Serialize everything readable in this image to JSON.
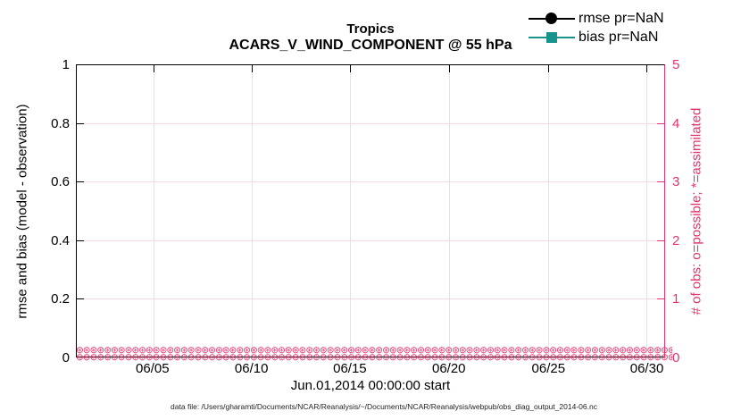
{
  "title": {
    "line1": "Tropics",
    "line2": "ACARS_V_WIND_COMPONENT @ 55 hPa"
  },
  "axes": {
    "x": {
      "label": "Jun.01,2014 00:00:00 start",
      "ticks": [
        {
          "label": "06/05",
          "pct": 13.0
        },
        {
          "label": "06/10",
          "pct": 29.8
        },
        {
          "label": "06/15",
          "pct": 46.5
        },
        {
          "label": "06/20",
          "pct": 63.3
        },
        {
          "label": "06/25",
          "pct": 80.2
        },
        {
          "label": "06/30",
          "pct": 96.9
        }
      ]
    },
    "left": {
      "label": "rmse and bias (model - observation)",
      "ticks": [
        {
          "label": "0",
          "pct": 0
        },
        {
          "label": "0.2",
          "pct": 20
        },
        {
          "label": "0.4",
          "pct": 40
        },
        {
          "label": "0.6",
          "pct": 60
        },
        {
          "label": "0.8",
          "pct": 80
        },
        {
          "label": "1",
          "pct": 100
        }
      ]
    },
    "right": {
      "label": "# of obs: o=possible; *=assimilated",
      "ticks": [
        {
          "label": "0",
          "pct": 0
        },
        {
          "label": "1",
          "pct": 20
        },
        {
          "label": "2",
          "pct": 40
        },
        {
          "label": "3",
          "pct": 60
        },
        {
          "label": "4",
          "pct": 80
        },
        {
          "label": "5",
          "pct": 100
        }
      ]
    }
  },
  "legend": [
    {
      "label": "rmse pr=NaN",
      "marker": "circle",
      "color": "#000000"
    },
    {
      "label": "bias pr=NaN",
      "marker": "square",
      "color": "#17948c"
    }
  ],
  "obs_markers": {
    "glyph": "⊛",
    "rows": 2,
    "repeat": 110,
    "color": "#e2336f",
    "meaning": "o=possible and *=assimilated observation counts, all zero"
  },
  "footer": "data file: /Users/gharamti/Documents/NCAR/Reanalysis/~/Documents/NCAR/Reanalysis/webpub/obs_diag_output_2014-06.nc",
  "colors": {
    "pink": "#e2336f",
    "teal": "#17948c",
    "black": "#000000",
    "vgrid": "#e3e3e3",
    "hgrid": "#f7d9e4"
  },
  "chart_data": {
    "type": "line",
    "title": "Tropics",
    "subtitle": "ACARS_V_WIND_COMPONENT @ 55 hPa",
    "xlabel": "Jun.01,2014 00:00:00 start",
    "ylabel_left": "rmse and bias (model - observation)",
    "ylabel_right": "# of obs: o=possible; *=assimilated",
    "x_range": [
      "2014-06-01 00:00:00",
      "2014-06-30 23:59:59"
    ],
    "x_tick_labels": [
      "06/05",
      "06/10",
      "06/15",
      "06/20",
      "06/25",
      "06/30"
    ],
    "ylim_left": [
      0,
      1
    ],
    "yticks_left": [
      0,
      0.2,
      0.4,
      0.6,
      0.8,
      1
    ],
    "ylim_right": [
      0,
      5
    ],
    "yticks_right": [
      0,
      1,
      2,
      3,
      4,
      5
    ],
    "grid": true,
    "legend_position": "top-right-inside, no box",
    "series": [
      {
        "name": "rmse pr=NaN",
        "axis": "left",
        "color": "#000000",
        "marker": "filled-circle",
        "values": "NaN — no curve drawn"
      },
      {
        "name": "bias pr=NaN",
        "axis": "left",
        "color": "#17948c",
        "marker": "filled-square",
        "values": "NaN — no curve drawn"
      },
      {
        "name": "# of obs possible (o)",
        "axis": "right",
        "color": "#e2336f",
        "marker": "o",
        "values": "0 at every time bin Jun 01 – Jun 30, 2014"
      },
      {
        "name": "# of obs assimilated (*)",
        "axis": "right",
        "color": "#e2336f",
        "marker": "*",
        "values": "0 at every time bin Jun 01 – Jun 30, 2014"
      }
    ]
  }
}
